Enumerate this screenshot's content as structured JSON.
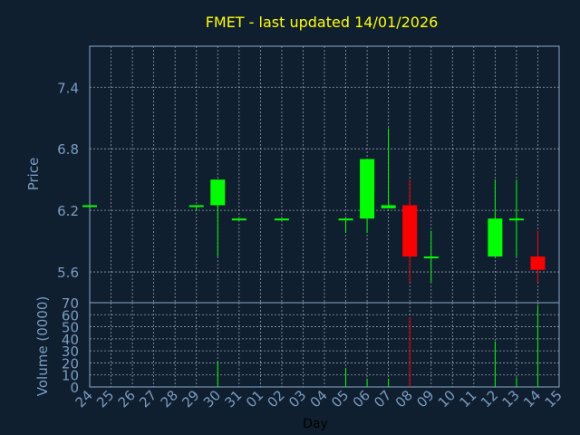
{
  "chart_data": [
    {
      "type": "candlestick",
      "title": "FMET - last updated 14/01/2026",
      "ylabel": "Price",
      "ylim": [
        5.3,
        7.8
      ],
      "yticks": [
        "5.6",
        "6.2",
        "6.8",
        "7.4"
      ],
      "grid": true,
      "categories": [
        "24",
        "25",
        "26",
        "27",
        "28",
        "29",
        "30",
        "31",
        "01",
        "02",
        "03",
        "04",
        "05",
        "06",
        "07",
        "08",
        "09",
        "10",
        "11",
        "12",
        "13",
        "14",
        "15"
      ],
      "candles": [
        {
          "x": "24",
          "open": 6.25,
          "high": 6.25,
          "low": 6.25,
          "close": 6.25
        },
        {
          "x": "29",
          "open": 6.25,
          "high": 6.25,
          "low": 6.2,
          "close": 6.25
        },
        {
          "x": "30",
          "open": 6.25,
          "high": 6.5,
          "low": 5.75,
          "close": 6.5
        },
        {
          "x": "31",
          "open": 6.12,
          "high": 6.12,
          "low": 6.1,
          "close": 6.12
        },
        {
          "x": "02",
          "open": 6.12,
          "high": 6.12,
          "low": 6.12,
          "close": 6.12
        },
        {
          "x": "05",
          "open": 6.12,
          "high": 6.12,
          "low": 5.98,
          "close": 6.12
        },
        {
          "x": "06",
          "open": 6.12,
          "high": 6.7,
          "low": 5.98,
          "close": 6.7
        },
        {
          "x": "07",
          "open": 6.22,
          "high": 7.0,
          "low": 6.22,
          "close": 6.25
        },
        {
          "x": "08",
          "open": 6.25,
          "high": 6.5,
          "low": 5.5,
          "close": 5.75
        },
        {
          "x": "09",
          "open": 5.75,
          "high": 6.0,
          "low": 5.5,
          "close": 5.75
        },
        {
          "x": "12",
          "open": 5.75,
          "high": 6.5,
          "low": 5.75,
          "close": 6.12
        },
        {
          "x": "13",
          "open": 6.12,
          "high": 6.5,
          "low": 5.75,
          "close": 6.12
        },
        {
          "x": "14",
          "open": 5.75,
          "high": 6.0,
          "low": 5.5,
          "close": 5.62
        }
      ]
    },
    {
      "type": "bar",
      "xlabel": "Day",
      "ylabel": "Volume (0000)",
      "ylim": [
        0,
        70
      ],
      "yticks": [
        "0",
        "10",
        "20",
        "30",
        "40",
        "50",
        "60",
        "70"
      ],
      "grid": true,
      "categories": [
        "24",
        "25",
        "26",
        "27",
        "28",
        "29",
        "30",
        "31",
        "01",
        "02",
        "03",
        "04",
        "05",
        "06",
        "07",
        "08",
        "09",
        "10",
        "11",
        "12",
        "13",
        "14",
        "15"
      ],
      "bars": [
        {
          "x": "30",
          "value": 21,
          "color": "#00ff00"
        },
        {
          "x": "05",
          "value": 16,
          "color": "#00ff00"
        },
        {
          "x": "06",
          "value": 7,
          "color": "#00ff00"
        },
        {
          "x": "07",
          "value": 7,
          "color": "#00ff00"
        },
        {
          "x": "08",
          "value": 58,
          "color": "#ff0000"
        },
        {
          "x": "12",
          "value": 38,
          "color": "#00ff00"
        },
        {
          "x": "13",
          "value": 8,
          "color": "#00ff00"
        },
        {
          "x": "14",
          "value": 68,
          "color": "#00ff00"
        }
      ]
    }
  ],
  "colors": {
    "background": "#0f1f30",
    "up": "#00ff00",
    "down": "#ff0000",
    "title": "#ffff00",
    "text": "#7b9cc0",
    "grid": "#c8c8c8",
    "frame": "#8aa8c8"
  }
}
